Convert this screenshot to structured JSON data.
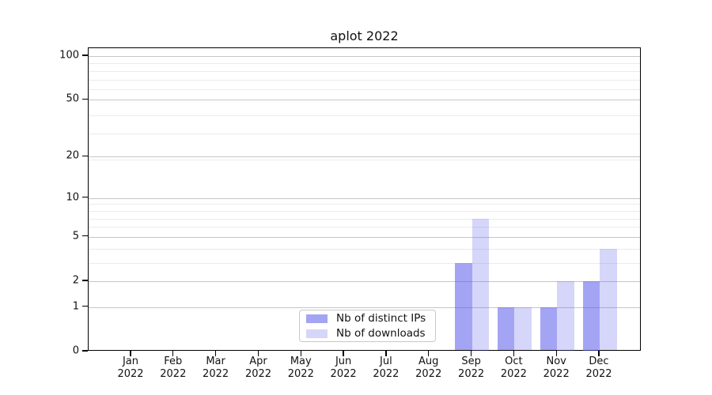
{
  "title": "aplot 2022",
  "legend": {
    "items": [
      {
        "label": "Nb of distinct IPs",
        "color": "rgba(90,90,235,0.55)"
      },
      {
        "label": "Nb of downloads",
        "color": "rgba(90,90,235,0.25)"
      }
    ]
  },
  "chart_data": {
    "type": "bar",
    "title": "aplot 2022",
    "categories": [
      "Jan 2022",
      "Feb 2022",
      "Mar 2022",
      "Apr 2022",
      "May 2022",
      "Jun 2022",
      "Jul 2022",
      "Aug 2022",
      "Sep 2022",
      "Oct 2022",
      "Nov 2022",
      "Dec 2022"
    ],
    "series": [
      {
        "name": "Nb of distinct IPs",
        "color": "rgba(90,90,235,0.55)",
        "values": [
          0,
          0,
          0,
          0,
          0,
          0,
          0,
          0,
          3,
          1,
          1,
          2
        ]
      },
      {
        "name": "Nb of downloads",
        "color": "rgba(90,90,235,0.25)",
        "values": [
          0,
          0,
          0,
          0,
          0,
          0,
          0,
          0,
          7,
          1,
          2,
          4
        ]
      }
    ],
    "xlabel": "",
    "ylabel": "",
    "y_ticks": [
      0,
      1,
      2,
      5,
      10,
      20,
      50,
      100
    ],
    "y_scale": "log10(1+y)",
    "ylim": [
      0,
      114
    ],
    "grid": "horizontal major and minor gridlines",
    "legend_position": "lower center",
    "colors": {
      "bar_distinct_ips": "rgba(90,90,235,0.55)",
      "bar_downloads": "rgba(90,90,235,0.25)",
      "grid_major": "#c6c6c6",
      "grid_minor": "#ebebeb",
      "spine": "#000000",
      "background": "#ffffff"
    }
  }
}
